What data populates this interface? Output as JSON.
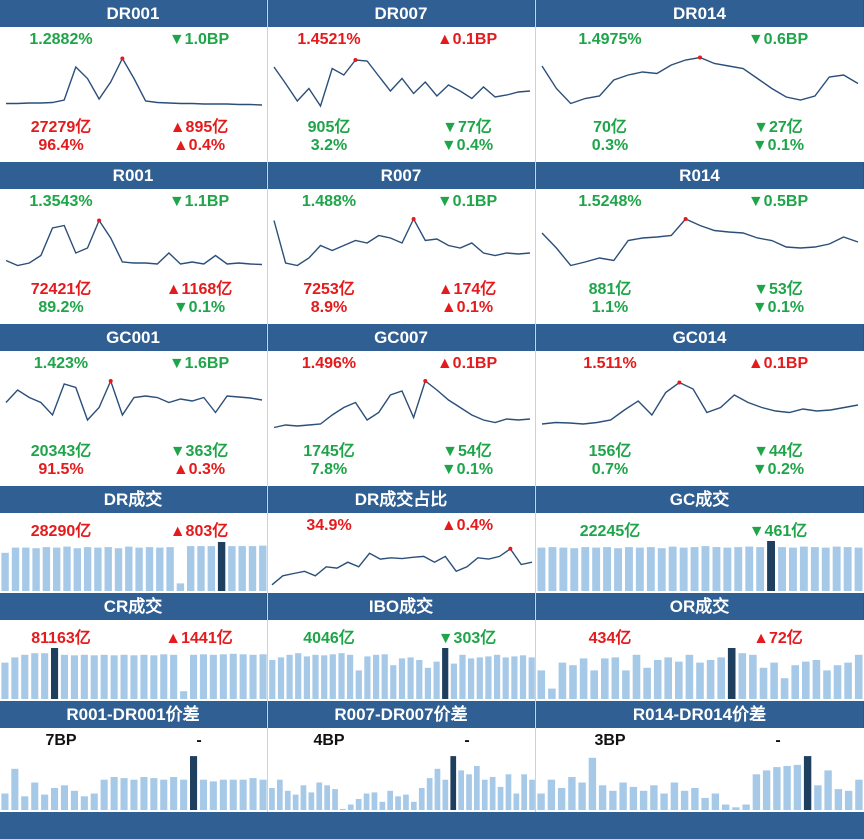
{
  "colors": {
    "header": "#2f5f93",
    "up": "#e41a1c",
    "down": "#1fa549",
    "line": "#2b4f79",
    "bar": "#a7c9e8",
    "bar_hi": "#1f3f5e"
  },
  "rate_rows": [
    {
      "cells": [
        {
          "title": "DR001",
          "rate": "1.2882%",
          "rate_color": "green",
          "change": "▼1.0BP",
          "change_color": "green",
          "volume": "27279亿",
          "volume_color": "red",
          "vol_change": "▲895亿",
          "vol_change_color": "red",
          "pct": "96.4%",
          "pct_color": "red",
          "pct_change": "▲0.4%",
          "pct_change_color": "red",
          "trend": [
            0.05,
            0.05,
            0.06,
            0.06,
            0.07,
            0.12,
            0.78,
            0.55,
            0.14,
            0.48,
            0.95,
            0.55,
            0.1,
            0.07,
            0.06,
            0.05,
            0.05,
            0.04,
            0.04,
            0.04,
            0.03,
            0.03,
            0.02
          ],
          "peak": 10
        },
        {
          "title": "DR007",
          "rate": "1.4521%",
          "rate_color": "red",
          "change": "▲0.1BP",
          "change_color": "red",
          "volume": "905亿",
          "volume_color": "green",
          "vol_change": "▼77亿",
          "vol_change_color": "green",
          "pct": "3.2%",
          "pct_color": "green",
          "pct_change": "▼0.4%",
          "pct_change_color": "green",
          "trend": [
            0.78,
            0.45,
            0.1,
            0.35,
            0.0,
            0.75,
            0.62,
            0.92,
            0.9,
            0.6,
            0.3,
            0.55,
            0.25,
            0.48,
            0.2,
            0.42,
            0.3,
            0.15,
            0.38,
            0.18,
            0.22,
            0.28,
            0.3
          ],
          "peak": 7
        },
        {
          "title": "DR014",
          "rate": "1.4975%",
          "rate_color": "green",
          "change": "▼0.6BP",
          "change_color": "green",
          "volume": "70亿",
          "volume_color": "green",
          "vol_change": "▼27亿",
          "vol_change_color": "green",
          "pct": "0.3%",
          "pct_color": "green",
          "pct_change": "▼0.1%",
          "pct_change_color": "green",
          "trend": [
            0.8,
            0.35,
            0.05,
            0.15,
            0.2,
            0.52,
            0.62,
            0.68,
            0.65,
            0.82,
            0.92,
            0.97,
            0.85,
            0.8,
            0.75,
            0.55,
            0.35,
            0.18,
            0.12,
            0.2,
            0.58,
            0.62,
            0.45
          ],
          "peak": 11
        }
      ]
    },
    {
      "cells": [
        {
          "title": "R001",
          "rate": "1.3543%",
          "rate_color": "green",
          "change": "▼1.1BP",
          "change_color": "green",
          "volume": "72421亿",
          "volume_color": "red",
          "vol_change": "▲1168亿",
          "vol_change_color": "red",
          "pct": "89.2%",
          "pct_color": "green",
          "pct_change": "▼0.1%",
          "pct_change_color": "green",
          "trend": [
            0.15,
            0.05,
            0.1,
            0.25,
            0.8,
            0.85,
            0.3,
            0.4,
            0.95,
            0.6,
            0.12,
            0.1,
            0.1,
            0.08,
            0.3,
            0.08,
            0.12,
            0.08,
            0.25,
            0.08,
            0.1,
            0.08,
            0.07
          ],
          "peak": 8
        },
        {
          "title": "R007",
          "rate": "1.488%",
          "rate_color": "green",
          "change": "▼0.1BP",
          "change_color": "green",
          "volume": "7253亿",
          "volume_color": "red",
          "vol_change": "▲174亿",
          "vol_change_color": "red",
          "pct": "8.9%",
          "pct_color": "red",
          "pct_change": "▲0.1%",
          "pct_change_color": "red",
          "trend": [
            0.95,
            0.1,
            0.05,
            0.2,
            0.45,
            0.35,
            0.45,
            0.55,
            0.5,
            0.65,
            0.6,
            0.5,
            0.98,
            0.55,
            0.58,
            0.45,
            0.4,
            0.5,
            0.3,
            0.25,
            0.3,
            0.28,
            0.3
          ],
          "peak": 12
        },
        {
          "title": "R014",
          "rate": "1.5248%",
          "rate_color": "green",
          "change": "▼0.5BP",
          "change_color": "green",
          "volume": "881亿",
          "volume_color": "green",
          "vol_change": "▼53亿",
          "vol_change_color": "green",
          "pct": "1.1%",
          "pct_color": "green",
          "pct_change": "▼0.1%",
          "pct_change_color": "green",
          "trend": [
            0.7,
            0.4,
            0.05,
            0.12,
            0.2,
            0.15,
            0.55,
            0.6,
            0.62,
            0.65,
            0.98,
            0.85,
            0.75,
            0.72,
            0.7,
            0.6,
            0.55,
            0.42,
            0.4,
            0.42,
            0.48,
            0.62,
            0.52
          ],
          "peak": 10
        }
      ]
    },
    {
      "cells": [
        {
          "title": "GC001",
          "rate": "1.423%",
          "rate_color": "green",
          "change": "▼1.6BP",
          "change_color": "green",
          "volume": "20343亿",
          "volume_color": "green",
          "vol_change": "▼363亿",
          "vol_change_color": "green",
          "pct": "91.5%",
          "pct_color": "red",
          "pct_change": "▲0.3%",
          "pct_change_color": "red",
          "trend": [
            0.55,
            0.8,
            0.65,
            0.55,
            0.3,
            0.92,
            0.85,
            0.2,
            0.45,
            0.98,
            0.3,
            0.65,
            0.68,
            0.65,
            0.55,
            0.62,
            0.58,
            0.65,
            0.35,
            0.68,
            0.66,
            0.64,
            0.6
          ],
          "peak": 9
        },
        {
          "title": "GC007",
          "rate": "1.496%",
          "rate_color": "red",
          "change": "▲0.1BP",
          "change_color": "red",
          "volume": "1745亿",
          "volume_color": "green",
          "vol_change": "▼54亿",
          "vol_change_color": "green",
          "pct": "7.8%",
          "pct_color": "green",
          "pct_change": "▼0.1%",
          "pct_change_color": "green",
          "trend": [
            0.05,
            0.1,
            0.08,
            0.1,
            0.12,
            0.3,
            0.45,
            0.55,
            0.2,
            0.35,
            0.7,
            0.78,
            0.25,
            0.98,
            0.8,
            0.6,
            0.45,
            0.3,
            0.2,
            0.15,
            0.22,
            0.2,
            0.22
          ],
          "peak": 13
        },
        {
          "title": "GC014",
          "rate": "1.511%",
          "rate_color": "red",
          "change": "▲0.1BP",
          "change_color": "red",
          "volume": "156亿",
          "volume_color": "green",
          "vol_change": "▼44亿",
          "vol_change_color": "green",
          "pct": "0.7%",
          "pct_color": "green",
          "pct_change": "▼0.2%",
          "pct_change_color": "green",
          "trend": [
            0.12,
            0.15,
            0.14,
            0.12,
            0.15,
            0.2,
            0.4,
            0.58,
            0.3,
            0.75,
            0.95,
            0.82,
            0.35,
            0.45,
            0.7,
            0.55,
            0.45,
            0.38,
            0.35,
            0.42,
            0.38,
            0.4,
            0.45,
            0.5
          ],
          "peak": 10
        }
      ]
    }
  ],
  "volume_rows": [
    {
      "cells": [
        {
          "title": "DR成交",
          "volume": "28290亿",
          "volume_color": "red",
          "change": "▲803亿",
          "change_color": "red",
          "kind": "bars",
          "bars": [
            0.75,
            0.85,
            0.85,
            0.84,
            0.86,
            0.85,
            0.87,
            0.84,
            0.86,
            0.85,
            0.86,
            0.84,
            0.87,
            0.85,
            0.86,
            0.85,
            0.86,
            0.15,
            0.88,
            0.88,
            0.88,
            0.96,
            0.88,
            0.88,
            0.88,
            0.89
          ],
          "hi": 21
        },
        {
          "title": "DR成交占比",
          "volume": "34.9%",
          "volume_color": "red",
          "change": "▲0.4%",
          "change_color": "red",
          "kind": "line",
          "trend": [
            0.05,
            0.25,
            0.3,
            0.35,
            0.25,
            0.45,
            0.42,
            0.55,
            0.45,
            0.75,
            0.62,
            0.65,
            0.63,
            0.66,
            0.68,
            0.55,
            0.68,
            0.35,
            0.45,
            0.65,
            0.62,
            0.68,
            0.85,
            0.5,
            0.55
          ],
          "peak": 22
        },
        {
          "title": "GC成交",
          "volume": "22245亿",
          "volume_color": "green",
          "change": "▼461亿",
          "change_color": "green",
          "kind": "bars",
          "bars": [
            0.85,
            0.86,
            0.85,
            0.84,
            0.86,
            0.85,
            0.86,
            0.84,
            0.86,
            0.85,
            0.86,
            0.84,
            0.87,
            0.85,
            0.86,
            0.88,
            0.86,
            0.85,
            0.86,
            0.87,
            0.86,
            0.98,
            0.86,
            0.85,
            0.87,
            0.86,
            0.85,
            0.87,
            0.86,
            0.85
          ],
          "hi": 21
        }
      ]
    },
    {
      "cells": [
        {
          "title": "CR成交",
          "volume": "81163亿",
          "volume_color": "red",
          "change": "▲1441亿",
          "change_color": "red",
          "kind": "bars",
          "bars": [
            0.7,
            0.8,
            0.85,
            0.88,
            0.88,
            0.98,
            0.85,
            0.84,
            0.85,
            0.84,
            0.85,
            0.84,
            0.85,
            0.84,
            0.85,
            0.84,
            0.86,
            0.85,
            0.15,
            0.85,
            0.86,
            0.85,
            0.86,
            0.87,
            0.86,
            0.85,
            0.86
          ],
          "hi": 5
        },
        {
          "title": "IBO成交",
          "volume": "4046亿",
          "volume_color": "green",
          "change": "▼303亿",
          "change_color": "green",
          "kind": "bars",
          "bars": [
            0.75,
            0.8,
            0.85,
            0.88,
            0.82,
            0.85,
            0.84,
            0.86,
            0.88,
            0.85,
            0.55,
            0.82,
            0.85,
            0.86,
            0.65,
            0.78,
            0.8,
            0.75,
            0.6,
            0.72,
            0.98,
            0.68,
            0.85,
            0.78,
            0.8,
            0.82,
            0.85,
            0.8,
            0.82,
            0.84,
            0.8
          ],
          "hi": 20
        },
        {
          "title": "OR成交",
          "volume": "434亿",
          "volume_color": "red",
          "change": "▲72亿",
          "change_color": "red",
          "kind": "bars",
          "bars": [
            0.55,
            0.2,
            0.7,
            0.65,
            0.78,
            0.55,
            0.78,
            0.8,
            0.55,
            0.85,
            0.6,
            0.75,
            0.8,
            0.72,
            0.85,
            0.7,
            0.75,
            0.8,
            0.98,
            0.88,
            0.85,
            0.6,
            0.7,
            0.4,
            0.65,
            0.72,
            0.75,
            0.55,
            0.65,
            0.7,
            0.85
          ],
          "hi": 18
        }
      ]
    },
    {
      "cells": [
        {
          "title": "R001-DR001价差",
          "volume": "7BP",
          "volume_color": "black",
          "change": "-",
          "change_color": "black",
          "kind": "bars",
          "bars": [
            0.3,
            0.75,
            0.25,
            0.5,
            0.28,
            0.4,
            0.45,
            0.35,
            0.25,
            0.3,
            0.55,
            0.6,
            0.58,
            0.55,
            0.6,
            0.58,
            0.55,
            0.6,
            0.55,
            0.98,
            0.55,
            0.52,
            0.55,
            0.55,
            0.55,
            0.58,
            0.55
          ],
          "hi": 19
        },
        {
          "title": "R007-DR007价差",
          "volume": "4BP",
          "volume_color": "black",
          "change": "-",
          "change_color": "black",
          "kind": "bars",
          "bars": [
            0.4,
            0.55,
            0.35,
            0.28,
            0.45,
            0.32,
            0.5,
            0.45,
            0.38,
            0.02,
            0.1,
            0.2,
            0.3,
            0.32,
            0.15,
            0.35,
            0.25,
            0.28,
            0.15,
            0.4,
            0.58,
            0.75,
            0.55,
            0.98,
            0.72,
            0.65,
            0.8,
            0.55,
            0.6,
            0.42,
            0.65,
            0.3,
            0.65,
            0.55
          ],
          "hi": 23
        },
        {
          "title": "R014-DR014价差",
          "volume": "3BP",
          "volume_color": "black",
          "change": "-",
          "change_color": "black",
          "kind": "bars",
          "bars": [
            0.3,
            0.55,
            0.4,
            0.6,
            0.5,
            0.95,
            0.45,
            0.35,
            0.5,
            0.42,
            0.35,
            0.45,
            0.3,
            0.5,
            0.35,
            0.4,
            0.22,
            0.3,
            0.1,
            0.05,
            0.1,
            0.65,
            0.72,
            0.78,
            0.8,
            0.82,
            0.98,
            0.45,
            0.72,
            0.38,
            0.35,
            0.55
          ],
          "hi": 26
        }
      ]
    }
  ]
}
